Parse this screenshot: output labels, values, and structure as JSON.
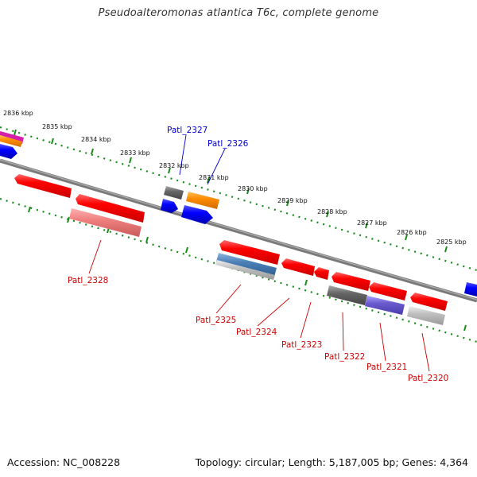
{
  "title": "Pseudoalteromonas atlantica T6c, complete genome",
  "footer": {
    "accession": "Accession: NC_008228",
    "stats": "Topology: circular; Length: 5,187,005 bp; Genes: 4,364"
  },
  "kbp_labels": [
    "2836 kbp",
    "2835 kbp",
    "2834 kbp",
    "2833 kbp",
    "2832 kbp",
    "2831 kbp",
    "2830 kbp",
    "2829 kbp",
    "2828 kbp",
    "2827 kbp",
    "2826 kbp",
    "2825 kbp"
  ],
  "gene_labels": {
    "forward": [
      "Patl_2327",
      "Patl_2326"
    ],
    "reverse": [
      "Patl_2328",
      "Patl_2325",
      "Patl_2324",
      "Patl_2323",
      "Patl_2322",
      "Patl_2321",
      "Patl_2320"
    ]
  },
  "colors": {
    "forward_label": "#0000cc",
    "reverse_label": "#cc0000",
    "backbone": "#808080",
    "ticks": "#1a8a1a",
    "gene_red": "#ff0000",
    "gene_blue": "#0000ff",
    "gene_orange": "#ff8c00",
    "gene_gray": "#666666",
    "gene_steelblue": "#4a7fb5",
    "gene_purple": "#6a5acd",
    "gene_pink": "#f08080",
    "gene_lightgray": "#c0c0c0"
  }
}
